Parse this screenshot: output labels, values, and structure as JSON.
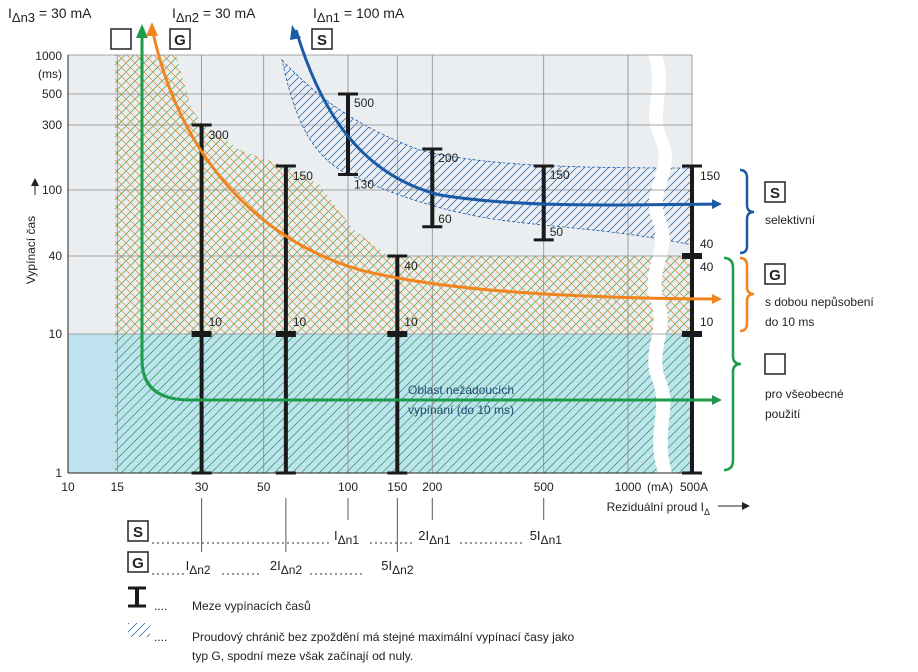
{
  "chart_data": {
    "type": "line",
    "x_scale": "log",
    "y_scale": "log",
    "x_ticks": [
      {
        "value": 10,
        "label": "10"
      },
      {
        "value": 15,
        "label": "15"
      },
      {
        "value": 30,
        "label": "30"
      },
      {
        "value": 50,
        "label": "50"
      },
      {
        "value": 100,
        "label": "100"
      },
      {
        "value": 150,
        "label": "150"
      },
      {
        "value": 200,
        "label": "200"
      },
      {
        "value": 500,
        "label": "500"
      },
      {
        "value": 1000,
        "label": "1000"
      }
    ],
    "x_extra_labels": [
      {
        "text": "(mA)",
        "after": 1000
      },
      {
        "text": "500A",
        "at": "break-right"
      }
    ],
    "y_ticks": [
      {
        "value": 1,
        "label": "1"
      },
      {
        "value": 10,
        "label": "10"
      },
      {
        "value": 40,
        "label": "40"
      },
      {
        "value": 100,
        "label": "100"
      },
      {
        "value": 300,
        "label": "300"
      },
      {
        "value": 500,
        "label": "500"
      },
      {
        "value": 1000,
        "label": "1000"
      }
    ],
    "y_unit_label": "(ms)",
    "ylabel": "Vypínací čas",
    "xlabel_prefix": "Reziduální proud I",
    "xlabel_sub": "Δ",
    "top_labels": [
      {
        "main": "I",
        "sub": "Δn3",
        "rest": " = 30 mA",
        "x": 15
      },
      {
        "main": "I",
        "sub": "Δn2",
        "rest": " = 30 mA",
        "x": 30
      },
      {
        "main": "I",
        "sub": "Δn1",
        "rest": " = 100 mA",
        "x": 100
      }
    ],
    "type_boxes": [
      {
        "label": "",
        "x": 15
      },
      {
        "label": "G",
        "x": 17.5
      },
      {
        "label": "S",
        "x": 80
      }
    ],
    "ranges": [
      {
        "x": 30,
        "max": 300,
        "min": 1,
        "marker": 10,
        "labels": [
          "300",
          "10"
        ]
      },
      {
        "x": 60,
        "max": 150,
        "min": 1,
        "marker": 10,
        "labels": [
          "150",
          "10"
        ]
      },
      {
        "x": 150,
        "max": 40,
        "min": 1,
        "marker": 10,
        "labels": [
          "40",
          "10"
        ]
      },
      {
        "x": 100,
        "max": 500,
        "min": 130,
        "labels": [
          "500",
          "130"
        ]
      },
      {
        "x": 200,
        "max": 200,
        "min": 60,
        "labels": [
          "200",
          "60"
        ]
      },
      {
        "x": 500,
        "max": 150,
        "min": 50,
        "labels": [
          "150",
          "50"
        ]
      },
      {
        "x": "break-right",
        "max": 150,
        "min": 1,
        "markers": [
          40,
          10
        ],
        "labels": [
          "150",
          "40",
          "40",
          "10"
        ]
      }
    ],
    "series": [
      {
        "name": "S",
        "color": "#1a5aa6"
      },
      {
        "name": "G",
        "color": "#f0851f"
      },
      {
        "name": "",
        "color": "#1e9a4b"
      }
    ],
    "annotation": [
      "Oblast nežádoucích",
      "vypínání (do 10 ms)"
    ],
    "right_legend": [
      {
        "box": "S",
        "text": [
          "selektivní"
        ]
      },
      {
        "box": "G",
        "text": [
          "s dobou nepůsobení",
          "do 10 ms"
        ]
      },
      {
        "box": "",
        "text": [
          "pro všeobecné",
          "použití"
        ]
      }
    ]
  },
  "bottom_legend": {
    "row_s_box": "S",
    "row_g_box": "G",
    "s_labels": [
      {
        "main": "I",
        "sub": "Δn1",
        "x": 100
      },
      {
        "main": "2I",
        "sub": "Δn1",
        "x": 200
      },
      {
        "main": "5I",
        "sub": "Δn1",
        "x": 500
      }
    ],
    "g_labels": [
      {
        "main": "I",
        "sub": "Δn2",
        "x": 30
      },
      {
        "main": "2I",
        "sub": "Δn2",
        "x": 60
      },
      {
        "main": "5I",
        "sub": "Δn2",
        "x": 150
      }
    ],
    "range_symbol_text": "Meze vypínacích časů",
    "hatch_text_line1": "Proudový chránič bez zpoždění má stejné maximální vypínací časy jako",
    "hatch_text_line2": "typ G, spodní meze však začínají od nuly.",
    "dots": "...."
  }
}
